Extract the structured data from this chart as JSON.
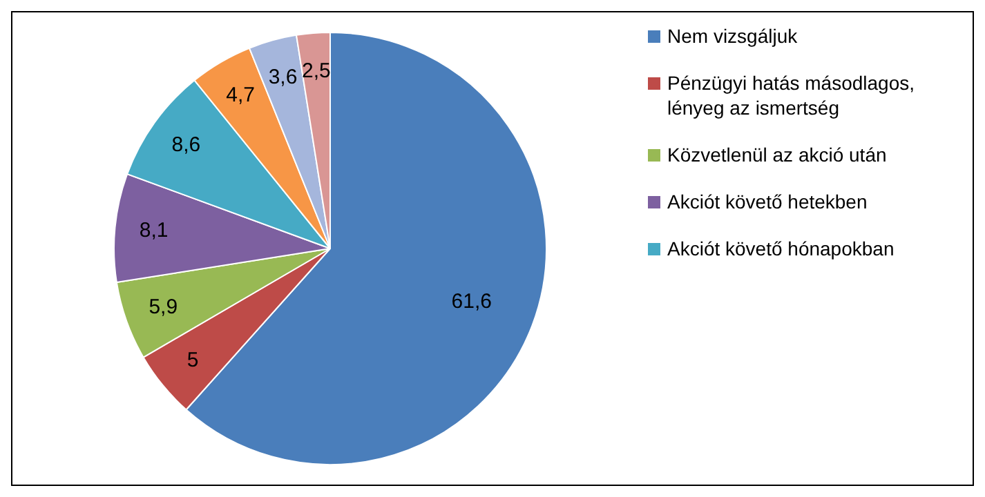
{
  "chart_data": {
    "type": "pie",
    "categories": [
      "Nem vizsgáljuk",
      "Pénzügyi hatás másodlagos, lényeg az ismertség",
      "Közvetlenül az akció után",
      "Akciót követő hetekben",
      "Akciót követő hónapokban",
      null,
      null,
      null
    ],
    "values": [
      61.6,
      5,
      5.9,
      8.1,
      8.6,
      4.7,
      3.6,
      2.5
    ],
    "value_labels": [
      "61,6",
      "5",
      "5,9",
      "8,1",
      "8,6",
      "4,7",
      "3,6",
      "2,5"
    ],
    "colors": [
      "#4a7ebb",
      "#be4b48",
      "#98b954",
      "#7d60a0",
      "#46aac5",
      "#f79646",
      "#a5b6dc",
      "#d99694"
    ],
    "legend": "right"
  }
}
